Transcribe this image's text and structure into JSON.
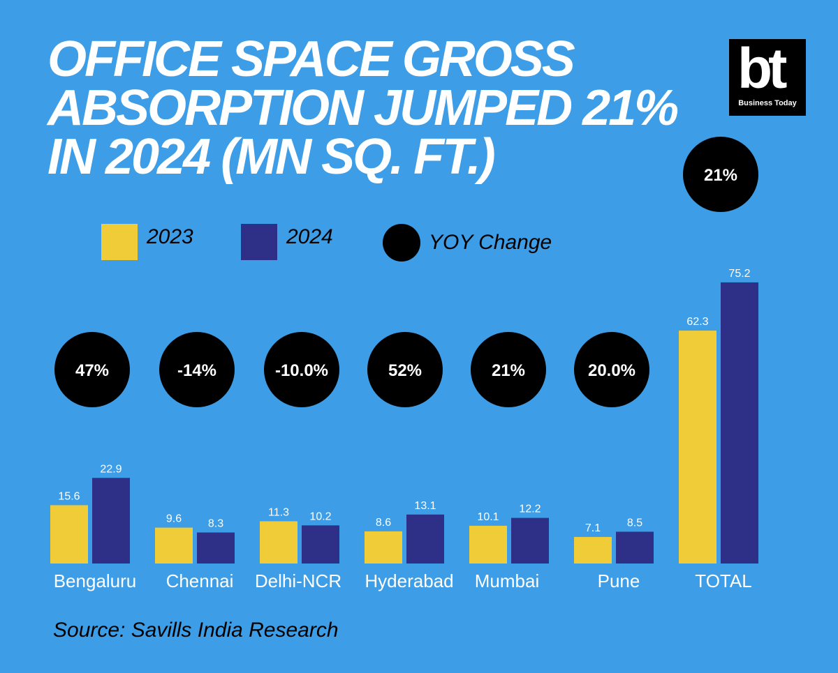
{
  "title_lines": [
    "OFFICE SPACE GROSS",
    "ABSORPTION JUMPED 21%",
    "IN 2024 (MN SQ. FT.)"
  ],
  "logo": {
    "mark": "bt",
    "text": "Business Today"
  },
  "legend": {
    "y2023": "2023",
    "y2024": "2024",
    "yoy": "YOY Change"
  },
  "source": "Source: Savills India Research",
  "colors": {
    "background": "#3d9de6",
    "y2023": "#f0cc38",
    "y2024": "#2e3087",
    "yoy": "#000000"
  },
  "chart_data": {
    "type": "bar",
    "title": "OFFICE SPACE GROSS ABSORPTION JUMPED 21% IN 2024 (MN SQ. FT.)",
    "xlabel": "",
    "ylabel": "",
    "grid": false,
    "legend_position": "top-left",
    "categories": [
      "Bengaluru",
      "Chennai",
      "Delhi-NCR",
      "Hyderabad",
      "Mumbai",
      "Pune",
      "TOTAL"
    ],
    "series": [
      {
        "name": "2023",
        "values": [
          15.6,
          9.6,
          11.3,
          8.6,
          10.1,
          7.1,
          62.3
        ],
        "labels": [
          "15.6",
          "9.6",
          "11.3",
          "8.6",
          "10.1",
          "7.1",
          "62.3"
        ]
      },
      {
        "name": "2024",
        "values": [
          22.9,
          8.3,
          10.2,
          13.1,
          12.2,
          8.5,
          75.2
        ],
        "labels": [
          "22.9",
          "8.3",
          "10.2",
          "13.1",
          "12.2",
          "8.5",
          "75.2"
        ]
      }
    ],
    "yoy_change": [
      "47%",
      "-14%",
      "-10.0%",
      "52%",
      "21%",
      "20.0%",
      "21%"
    ]
  }
}
